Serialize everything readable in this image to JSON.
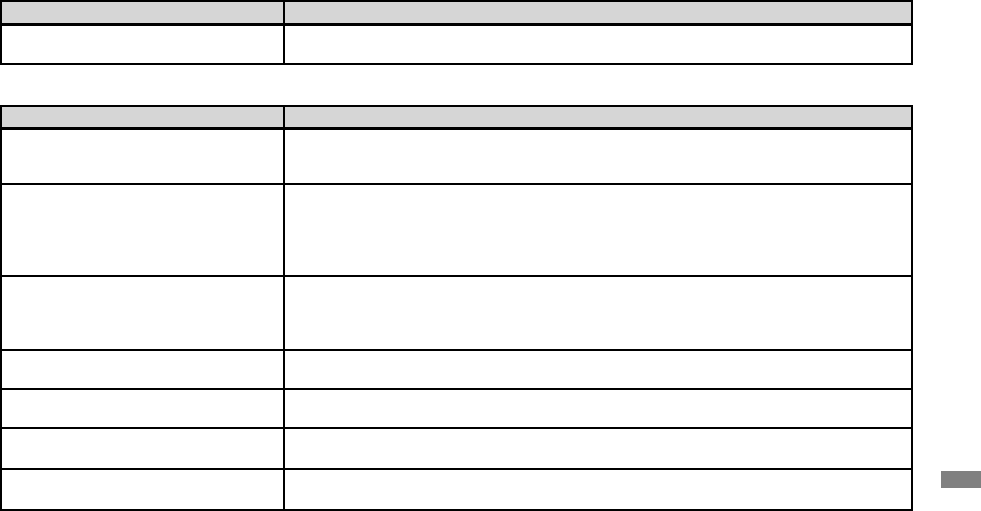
{
  "colors": {
    "header_bg": "#d6d6d6",
    "border": "#000000",
    "side_tab": "#808080"
  },
  "table1": {
    "headers": [
      "",
      ""
    ],
    "rows": [
      [
        "",
        ""
      ]
    ]
  },
  "table2": {
    "headers": [
      "",
      ""
    ],
    "rows": [
      [
        "",
        ""
      ],
      [
        "",
        ""
      ],
      [
        "",
        ""
      ],
      [
        "",
        ""
      ],
      [
        "",
        ""
      ],
      [
        "",
        ""
      ],
      [
        "",
        ""
      ]
    ]
  }
}
